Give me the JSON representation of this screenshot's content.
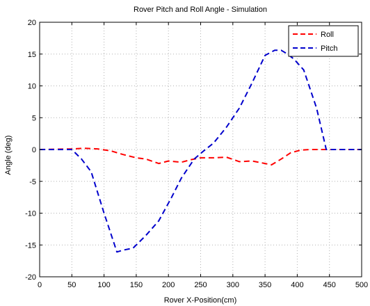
{
  "chart_data": {
    "type": "line",
    "title": "Rover Pitch and Roll Angle - Simulation",
    "xlabel": "Rover X-Position(cm)",
    "ylabel": "Angle (deg)",
    "xlim": [
      0,
      500
    ],
    "ylim": [
      -20,
      20
    ],
    "xticks": [
      0,
      50,
      100,
      150,
      200,
      250,
      300,
      350,
      400,
      450,
      500
    ],
    "yticks": [
      -20,
      -15,
      -10,
      -5,
      0,
      5,
      10,
      15,
      20
    ],
    "grid": true,
    "legend_position": "top-right",
    "series": [
      {
        "name": "Roll",
        "color": "#ff0000",
        "line_style": "dashed",
        "x": [
          0,
          50,
          70,
          90,
          110,
          130,
          150,
          165,
          185,
          200,
          220,
          235,
          250,
          270,
          290,
          310,
          330,
          345,
          360,
          375,
          390,
          405,
          420,
          440,
          460,
          500
        ],
        "y": [
          0,
          0.1,
          0.2,
          0.1,
          -0.2,
          -0.8,
          -1.3,
          -1.5,
          -2.2,
          -1.8,
          -2.0,
          -1.6,
          -1.3,
          -1.3,
          -1.2,
          -1.9,
          -1.8,
          -2.1,
          -2.4,
          -1.5,
          -0.5,
          -0.1,
          0,
          0,
          0,
          0
        ]
      },
      {
        "name": "Pitch",
        "color": "#0000cc",
        "line_style": "dashed",
        "x": [
          0,
          50,
          65,
          80,
          100,
          120,
          130,
          145,
          165,
          185,
          205,
          220,
          240,
          255,
          270,
          290,
          310,
          330,
          350,
          365,
          375,
          385,
          395,
          410,
          430,
          445,
          460,
          500
        ],
        "y": [
          0,
          0,
          -1.5,
          -3.5,
          -10,
          -16.1,
          -15.8,
          -15.5,
          -13.5,
          -11.2,
          -7.5,
          -4.5,
          -1.5,
          -0.2,
          1,
          3.5,
          6.5,
          10.5,
          14.8,
          15.6,
          15.6,
          15,
          14.2,
          12.5,
          6.5,
          0,
          0,
          0
        ]
      }
    ]
  }
}
